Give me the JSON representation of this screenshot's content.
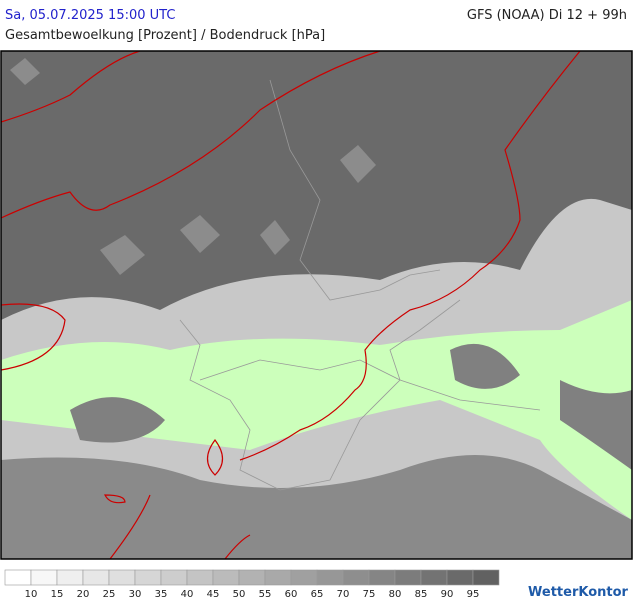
{
  "header": {
    "datetime": "Sa, 05.07.2025 15:00 UTC",
    "model": "GFS (NOAA) Di 12 + 99h",
    "subtitle": "Gesamtbewoelkung [Prozent] / Bodendruck [hPa]"
  },
  "legend": {
    "levels": [
      10,
      15,
      20,
      25,
      30,
      35,
      40,
      45,
      50,
      55,
      60,
      65,
      70,
      75,
      80,
      85,
      90,
      95
    ],
    "colors": [
      "#ffffff",
      "#f7f7f7",
      "#efefef",
      "#e7e7e7",
      "#dfdfdf",
      "#d6d6d6",
      "#cdcdcd",
      "#c4c4c4",
      "#bbbbbb",
      "#b2b2b2",
      "#a9a9a9",
      "#a0a0a0",
      "#979797",
      "#8e8e8e",
      "#858585",
      "#7c7c7c",
      "#737373",
      "#6a6a6a",
      "#616161"
    ]
  },
  "logo": "WetterKontor"
}
